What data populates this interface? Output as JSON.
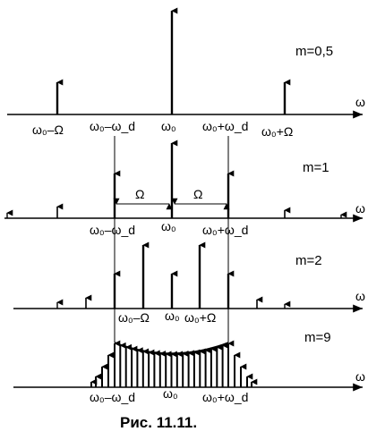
{
  "axis_symbol": "ω",
  "panels": [
    {
      "id": "m05",
      "m_label": "m=0,5",
      "labels": [
        "ω₀–Ω",
        "ω₀–ω_d",
        "ω₀",
        "ω₀+ω_d",
        "ω₀+Ω"
      ]
    },
    {
      "id": "m1",
      "m_label": "m=1",
      "spacing_label_left": "Ω",
      "spacing_label_right": "Ω",
      "labels": [
        "ω₀–ω_d",
        "ω₀",
        "ω₀+ω_d"
      ]
    },
    {
      "id": "m2",
      "m_label": "m=2",
      "labels": [
        "ω₀–Ω",
        "ω₀",
        "ω₀+Ω"
      ]
    },
    {
      "id": "m9",
      "m_label": "m=9",
      "labels": [
        "ω₀–ω_d",
        "ω₀",
        "ω₀+ω_d"
      ]
    }
  ],
  "caption": "Рис. 11.11."
}
